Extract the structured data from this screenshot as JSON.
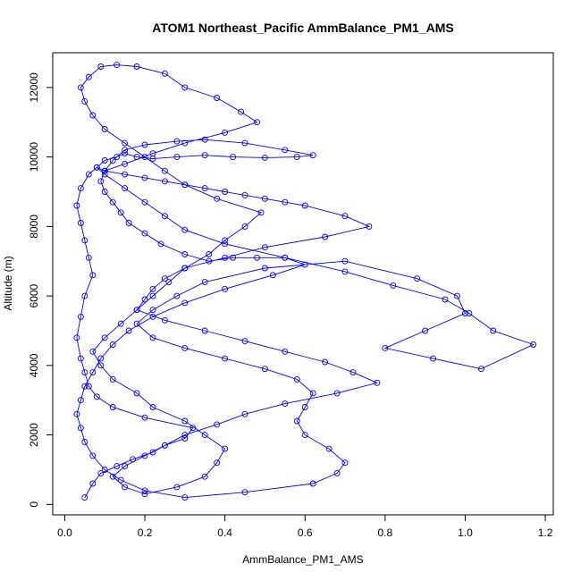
{
  "chart_data": {
    "type": "line",
    "title": "ATOM1 Northeast_Pacific AmmBalance_PM1_AMS",
    "xlabel": "AmmBalance_PM1_AMS",
    "ylabel": "Altitude (m)",
    "xlim": [
      -0.03,
      1.22
    ],
    "ylim": [
      -300,
      13000
    ],
    "x_ticks": [
      0,
      0.2,
      0.4,
      0.6,
      0.8,
      1,
      1.2
    ],
    "x_tick_labels": [
      "0.0",
      "0.2",
      "0.4",
      "0.6",
      "0.8",
      "1.0",
      "1.2"
    ],
    "y_ticks": [
      0,
      2000,
      4000,
      6000,
      8000,
      10000,
      12000
    ],
    "y_tick_labels": [
      "0",
      "2000",
      "4000",
      "6000",
      "8000",
      "10000",
      "12000"
    ],
    "grid": false,
    "legend": "none",
    "series": [
      {
        "color": "#0000ff",
        "marker": "open-circle",
        "x": [
          0.05,
          0.07,
          0.09,
          0.13,
          0.17,
          0.22,
          0.25,
          0.3,
          0.32,
          0.2,
          0.12,
          0.08,
          0.06,
          0.05,
          0.04,
          0.03,
          0.04,
          0.05,
          0.07,
          0.06,
          0.05,
          0.04,
          0.03,
          0.04,
          0.06,
          0.08,
          0.1,
          0.13,
          0.15,
          0.18,
          0.22,
          0.28,
          0.35,
          0.42,
          0.5,
          0.58,
          0.62,
          0.55,
          0.45,
          0.35,
          0.28,
          0.2,
          0.15,
          0.12,
          0.1,
          0.09,
          0.1,
          0.12,
          0.14,
          0.16,
          0.2,
          0.24,
          0.3,
          0.36,
          0.42,
          0.48,
          0.55,
          0.6,
          0.52,
          0.4,
          0.3,
          0.22,
          0.16,
          0.12,
          0.09,
          0.07,
          0.05,
          0.04,
          0.03,
          0.04,
          0.05,
          0.07,
          0.1,
          0.14,
          0.2,
          0.3,
          0.45,
          0.62,
          0.68,
          0.7,
          0.66,
          0.6,
          0.58,
          0.6,
          0.62,
          0.58,
          0.5,
          0.4,
          0.3,
          0.22,
          0.18,
          0.22,
          0.28,
          0.35,
          0.5,
          0.7,
          0.88,
          0.98,
          1.0,
          0.9,
          0.8,
          0.92,
          1.04,
          1.17,
          1.07,
          1.01,
          0.95,
          0.82,
          0.7,
          0.55,
          0.4,
          0.3,
          0.25,
          0.2,
          0.15,
          0.1,
          0.08,
          0.1,
          0.15,
          0.2,
          0.25,
          0.3,
          0.35,
          0.4,
          0.45,
          0.5,
          0.55,
          0.6,
          0.7,
          0.76,
          0.65,
          0.5,
          0.4,
          0.3,
          0.25,
          0.22,
          0.2,
          0.18,
          0.25,
          0.35,
          0.45,
          0.55,
          0.65,
          0.72,
          0.78,
          0.68,
          0.55,
          0.45,
          0.38,
          0.3,
          0.25,
          0.2,
          0.15,
          0.12,
          0.15,
          0.2,
          0.28,
          0.35,
          0.38,
          0.4,
          0.35,
          0.3,
          0.22,
          0.18,
          0.12,
          0.09,
          0.07,
          0.1,
          0.14,
          0.18,
          0.22,
          0.26,
          0.3,
          0.36,
          0.4,
          0.45,
          0.49,
          0.38,
          0.3,
          0.25,
          0.2,
          0.15,
          0.1,
          0.07,
          0.05,
          0.04,
          0.06,
          0.09,
          0.13,
          0.18,
          0.25,
          0.3,
          0.38,
          0.44,
          0.48,
          0.4,
          0.3,
          0.22,
          0.15,
          0.1
        ],
        "y": [
          200,
          600,
          900,
          1100,
          1300,
          1500,
          1700,
          1900,
          2200,
          2500,
          2800,
          3100,
          3400,
          3800,
          4200,
          4800,
          5400,
          6000,
          6600,
          7100,
          7600,
          8100,
          8600,
          9100,
          9500,
          9700,
          9900,
          10000,
          10100,
          10000,
          9950,
          10000,
          10050,
          10000,
          9980,
          10000,
          10050,
          10200,
          10400,
          10500,
          10450,
          10350,
          10200,
          9900,
          9600,
          9300,
          9000,
          8700,
          8400,
          8100,
          7800,
          7500,
          7200,
          7000,
          7100,
          7100,
          7100,
          6900,
          6600,
          6200,
          5800,
          5400,
          5000,
          4600,
          4200,
          3800,
          3400,
          3000,
          2600,
          2200,
          1800,
          1400,
          1000,
          700,
          400,
          200,
          350,
          600,
          900,
          1200,
          1600,
          2000,
          2400,
          2800,
          3200,
          3600,
          3900,
          4200,
          4500,
          4800,
          5200,
          5600,
          6000,
          6400,
          6800,
          7000,
          6500,
          6000,
          5500,
          5000,
          4500,
          4200,
          3900,
          4600,
          5000,
          5500,
          5900,
          6300,
          6700,
          7100,
          7500,
          7900,
          8300,
          8700,
          9100,
          9500,
          9700,
          9600,
          9500,
          9400,
          9300,
          9200,
          9100,
          9000,
          8900,
          8800,
          8700,
          8600,
          8300,
          8000,
          7700,
          7400,
          7100,
          6800,
          6500,
          6200,
          5900,
          5600,
          5300,
          5000,
          4700,
          4400,
          4100,
          3800,
          3500,
          3200,
          2900,
          2600,
          2300,
          2000,
          1700,
          1400,
          1100,
          800,
          500,
          300,
          500,
          800,
          1200,
          1600,
          2000,
          2400,
          2800,
          3200,
          3600,
          4000,
          4400,
          4800,
          5200,
          5600,
          6000,
          6400,
          6800,
          7200,
          7600,
          8000,
          8400,
          8800,
          9200,
          9600,
          10000,
          10400,
          10800,
          11200,
          11600,
          12000,
          12300,
          12600,
          12650,
          12600,
          12400,
          12000,
          11700,
          11300,
          11000,
          10700,
          10400,
          10100,
          9800,
          9600
        ]
      }
    ]
  }
}
